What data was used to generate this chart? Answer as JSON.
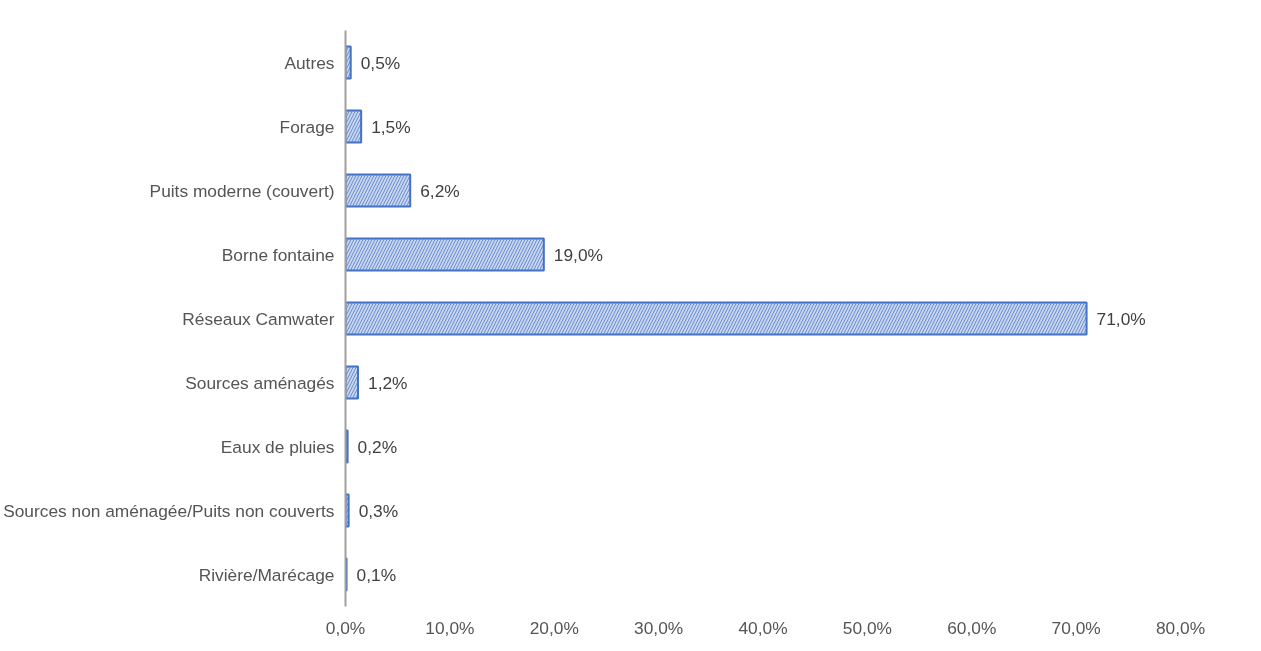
{
  "chart_data": {
    "type": "bar",
    "orientation": "horizontal",
    "categories": [
      "Autres",
      "Forage",
      "Puits moderne (couvert)",
      "Borne fontaine",
      "Réseaux Camwater",
      "Sources aménagés",
      "Eaux de pluies",
      "Sources non aménagée/Puits non couverts",
      "Rivière/Marécage"
    ],
    "values": [
      0.5,
      1.5,
      6.2,
      19.0,
      71.0,
      1.2,
      0.2,
      0.3,
      0.1
    ],
    "value_labels": [
      "0,5%",
      "1,5%",
      "6,2%",
      "19,0%",
      "71,0%",
      "1,2%",
      "0,2%",
      "0,3%",
      "0,1%"
    ],
    "color": "#4472c4",
    "xlim": [
      0,
      80
    ],
    "xticks": [
      {
        "value": 0,
        "label": "0,0%"
      },
      {
        "value": 10,
        "label": "10,0%"
      },
      {
        "value": 20,
        "label": "20,0%"
      },
      {
        "value": 30,
        "label": "30,0%"
      },
      {
        "value": 40,
        "label": "40,0%"
      },
      {
        "value": 50,
        "label": "50,0%"
      },
      {
        "value": 60,
        "label": "60,0%"
      },
      {
        "value": 70,
        "label": "70,0%"
      },
      {
        "value": 80,
        "label": "80,0%"
      }
    ],
    "grid": false
  }
}
